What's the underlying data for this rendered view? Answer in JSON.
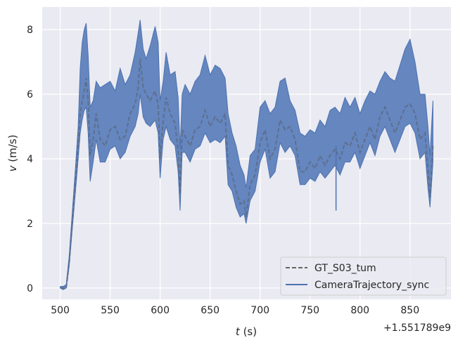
{
  "chart_data": {
    "type": "line",
    "title": "",
    "xlabel_var": "t",
    "xlabel_unit": " (s)",
    "ylabel_var": "v",
    "ylabel_unit": " (m/s)",
    "x_offset_label": "+1.551789e9",
    "xlim": [
      482,
      891
    ],
    "ylim": [
      -0.35,
      8.7
    ],
    "x_ticks": [
      500,
      550,
      600,
      650,
      700,
      750,
      800,
      850
    ],
    "y_ticks": [
      0,
      2,
      4,
      6,
      8
    ],
    "grid": true,
    "legend_position": "lower-right",
    "colors": {
      "background": "#eaeaf2",
      "grid": "#ffffff",
      "band_fill": "#5a7ebb",
      "band_stroke": "#4c72b0",
      "gt_line": "#5c6b85",
      "legend_line": "#4c72b0",
      "legend_dash": "#666666"
    },
    "series": [
      {
        "name": "GT_S03_tum",
        "style": "dashed",
        "x": [
          500,
          503,
          506,
          509,
          512,
          515,
          518,
          520,
          522,
          524,
          526,
          528,
          530,
          533,
          536,
          540,
          545,
          550,
          555,
          560,
          565,
          570,
          575,
          578,
          580,
          583,
          586,
          590,
          595,
          598,
          600,
          603,
          606,
          610,
          615,
          618,
          620,
          622,
          625,
          630,
          635,
          640,
          645,
          650,
          655,
          660,
          665,
          668,
          672,
          676,
          680,
          684,
          686,
          690,
          695,
          700,
          705,
          710,
          715,
          720,
          725,
          730,
          735,
          740,
          745,
          750,
          755,
          760,
          765,
          770,
          775,
          780,
          785,
          790,
          795,
          800,
          805,
          810,
          815,
          820,
          825,
          830,
          835,
          840,
          845,
          850,
          855,
          860,
          865,
          868,
          870,
          873
        ],
        "y": [
          0.0,
          0.0,
          0.0,
          0.8,
          2.0,
          3.2,
          4.4,
          5.4,
          5.8,
          6.1,
          6.5,
          5.8,
          4.1,
          4.6,
          5.4,
          4.6,
          4.4,
          4.9,
          5.0,
          4.6,
          4.7,
          5.4,
          5.7,
          6.2,
          7.1,
          6.2,
          6.0,
          5.8,
          6.1,
          5.7,
          4.0,
          5.2,
          5.9,
          5.4,
          5.1,
          4.2,
          2.9,
          4.9,
          4.7,
          4.4,
          4.9,
          5.0,
          5.5,
          5.0,
          5.3,
          5.1,
          5.4,
          3.8,
          3.5,
          3.0,
          2.6,
          2.7,
          2.2,
          3.2,
          3.5,
          4.5,
          4.9,
          4.0,
          4.3,
          5.2,
          4.9,
          5.0,
          4.6,
          3.6,
          3.6,
          3.9,
          3.7,
          4.1,
          3.8,
          4.1,
          4.3,
          4.0,
          4.5,
          4.4,
          4.8,
          4.2,
          4.6,
          5.0,
          4.6,
          5.3,
          5.6,
          5.2,
          4.8,
          5.2,
          5.6,
          5.7,
          5.4,
          4.6,
          4.8,
          3.7,
          2.8,
          4.4
        ]
      },
      {
        "name": "CameraTrajectory_sync",
        "style": "solid-band",
        "x": [
          500,
          503,
          506,
          509,
          512,
          515,
          518,
          520,
          522,
          524,
          526,
          528,
          530,
          533,
          536,
          540,
          545,
          550,
          555,
          560,
          565,
          570,
          575,
          578,
          580,
          583,
          586,
          590,
          595,
          598,
          600,
          603,
          606,
          610,
          615,
          618,
          620,
          622,
          625,
          630,
          635,
          640,
          645,
          650,
          655,
          660,
          665,
          668,
          672,
          676,
          680,
          684,
          686,
          690,
          695,
          700,
          705,
          710,
          715,
          720,
          725,
          730,
          735,
          740,
          745,
          750,
          755,
          760,
          765,
          770,
          775,
          780,
          785,
          790,
          795,
          800,
          805,
          810,
          815,
          820,
          825,
          830,
          835,
          840,
          845,
          850,
          855,
          860,
          865,
          868,
          870,
          873
        ],
        "upper": [
          0.05,
          0.05,
          0.1,
          1.0,
          2.3,
          3.6,
          5.0,
          6.8,
          7.6,
          8.0,
          8.2,
          7.2,
          5.6,
          5.8,
          6.4,
          6.2,
          6.3,
          6.4,
          6.1,
          6.8,
          6.3,
          6.6,
          7.3,
          7.9,
          8.3,
          7.4,
          7.1,
          7.5,
          8.1,
          7.6,
          5.8,
          6.4,
          7.3,
          6.6,
          6.7,
          5.9,
          4.3,
          6.0,
          6.3,
          6.0,
          6.4,
          6.6,
          7.2,
          6.6,
          6.9,
          6.8,
          6.5,
          5.4,
          4.8,
          4.4,
          3.8,
          3.5,
          3.1,
          4.1,
          4.3,
          5.6,
          5.8,
          5.4,
          5.6,
          6.4,
          6.5,
          5.8,
          5.5,
          4.8,
          4.7,
          4.9,
          4.8,
          5.2,
          5.0,
          5.5,
          5.6,
          5.4,
          5.9,
          5.6,
          5.9,
          5.4,
          5.8,
          6.1,
          6.0,
          6.4,
          6.7,
          6.5,
          6.4,
          6.9,
          7.4,
          7.7,
          7.0,
          6.0,
          6.0,
          5.0,
          4.1,
          5.8
        ],
        "lower": [
          0.0,
          -0.05,
          0.0,
          0.7,
          1.8,
          2.9,
          4.0,
          4.8,
          5.2,
          5.5,
          5.6,
          4.8,
          3.3,
          3.9,
          4.6,
          3.9,
          3.9,
          4.3,
          4.4,
          4.0,
          4.2,
          4.7,
          5.0,
          5.4,
          6.0,
          5.3,
          5.1,
          5.0,
          5.2,
          4.8,
          3.4,
          4.6,
          5.0,
          4.6,
          4.4,
          3.6,
          2.4,
          4.2,
          4.2,
          3.9,
          4.3,
          4.4,
          4.8,
          4.5,
          4.6,
          4.5,
          4.7,
          3.2,
          3.0,
          2.5,
          2.2,
          2.3,
          2.0,
          2.7,
          3.0,
          3.9,
          4.3,
          3.4,
          3.6,
          4.5,
          4.2,
          4.4,
          4.1,
          3.2,
          3.2,
          3.4,
          3.3,
          3.6,
          3.4,
          3.6,
          3.8,
          3.5,
          3.9,
          3.9,
          4.2,
          3.7,
          4.1,
          4.5,
          4.1,
          4.7,
          5.0,
          4.6,
          4.2,
          4.6,
          5.0,
          5.1,
          4.8,
          4.0,
          4.2,
          3.1,
          2.5,
          3.9
        ]
      }
    ],
    "spikes": [
      {
        "x": 776,
        "y_from": 4.4,
        "y_to": 2.4
      }
    ],
    "legend": {
      "entries": [
        "GT_S03_tum",
        "CameraTrajectory_sync"
      ]
    }
  }
}
